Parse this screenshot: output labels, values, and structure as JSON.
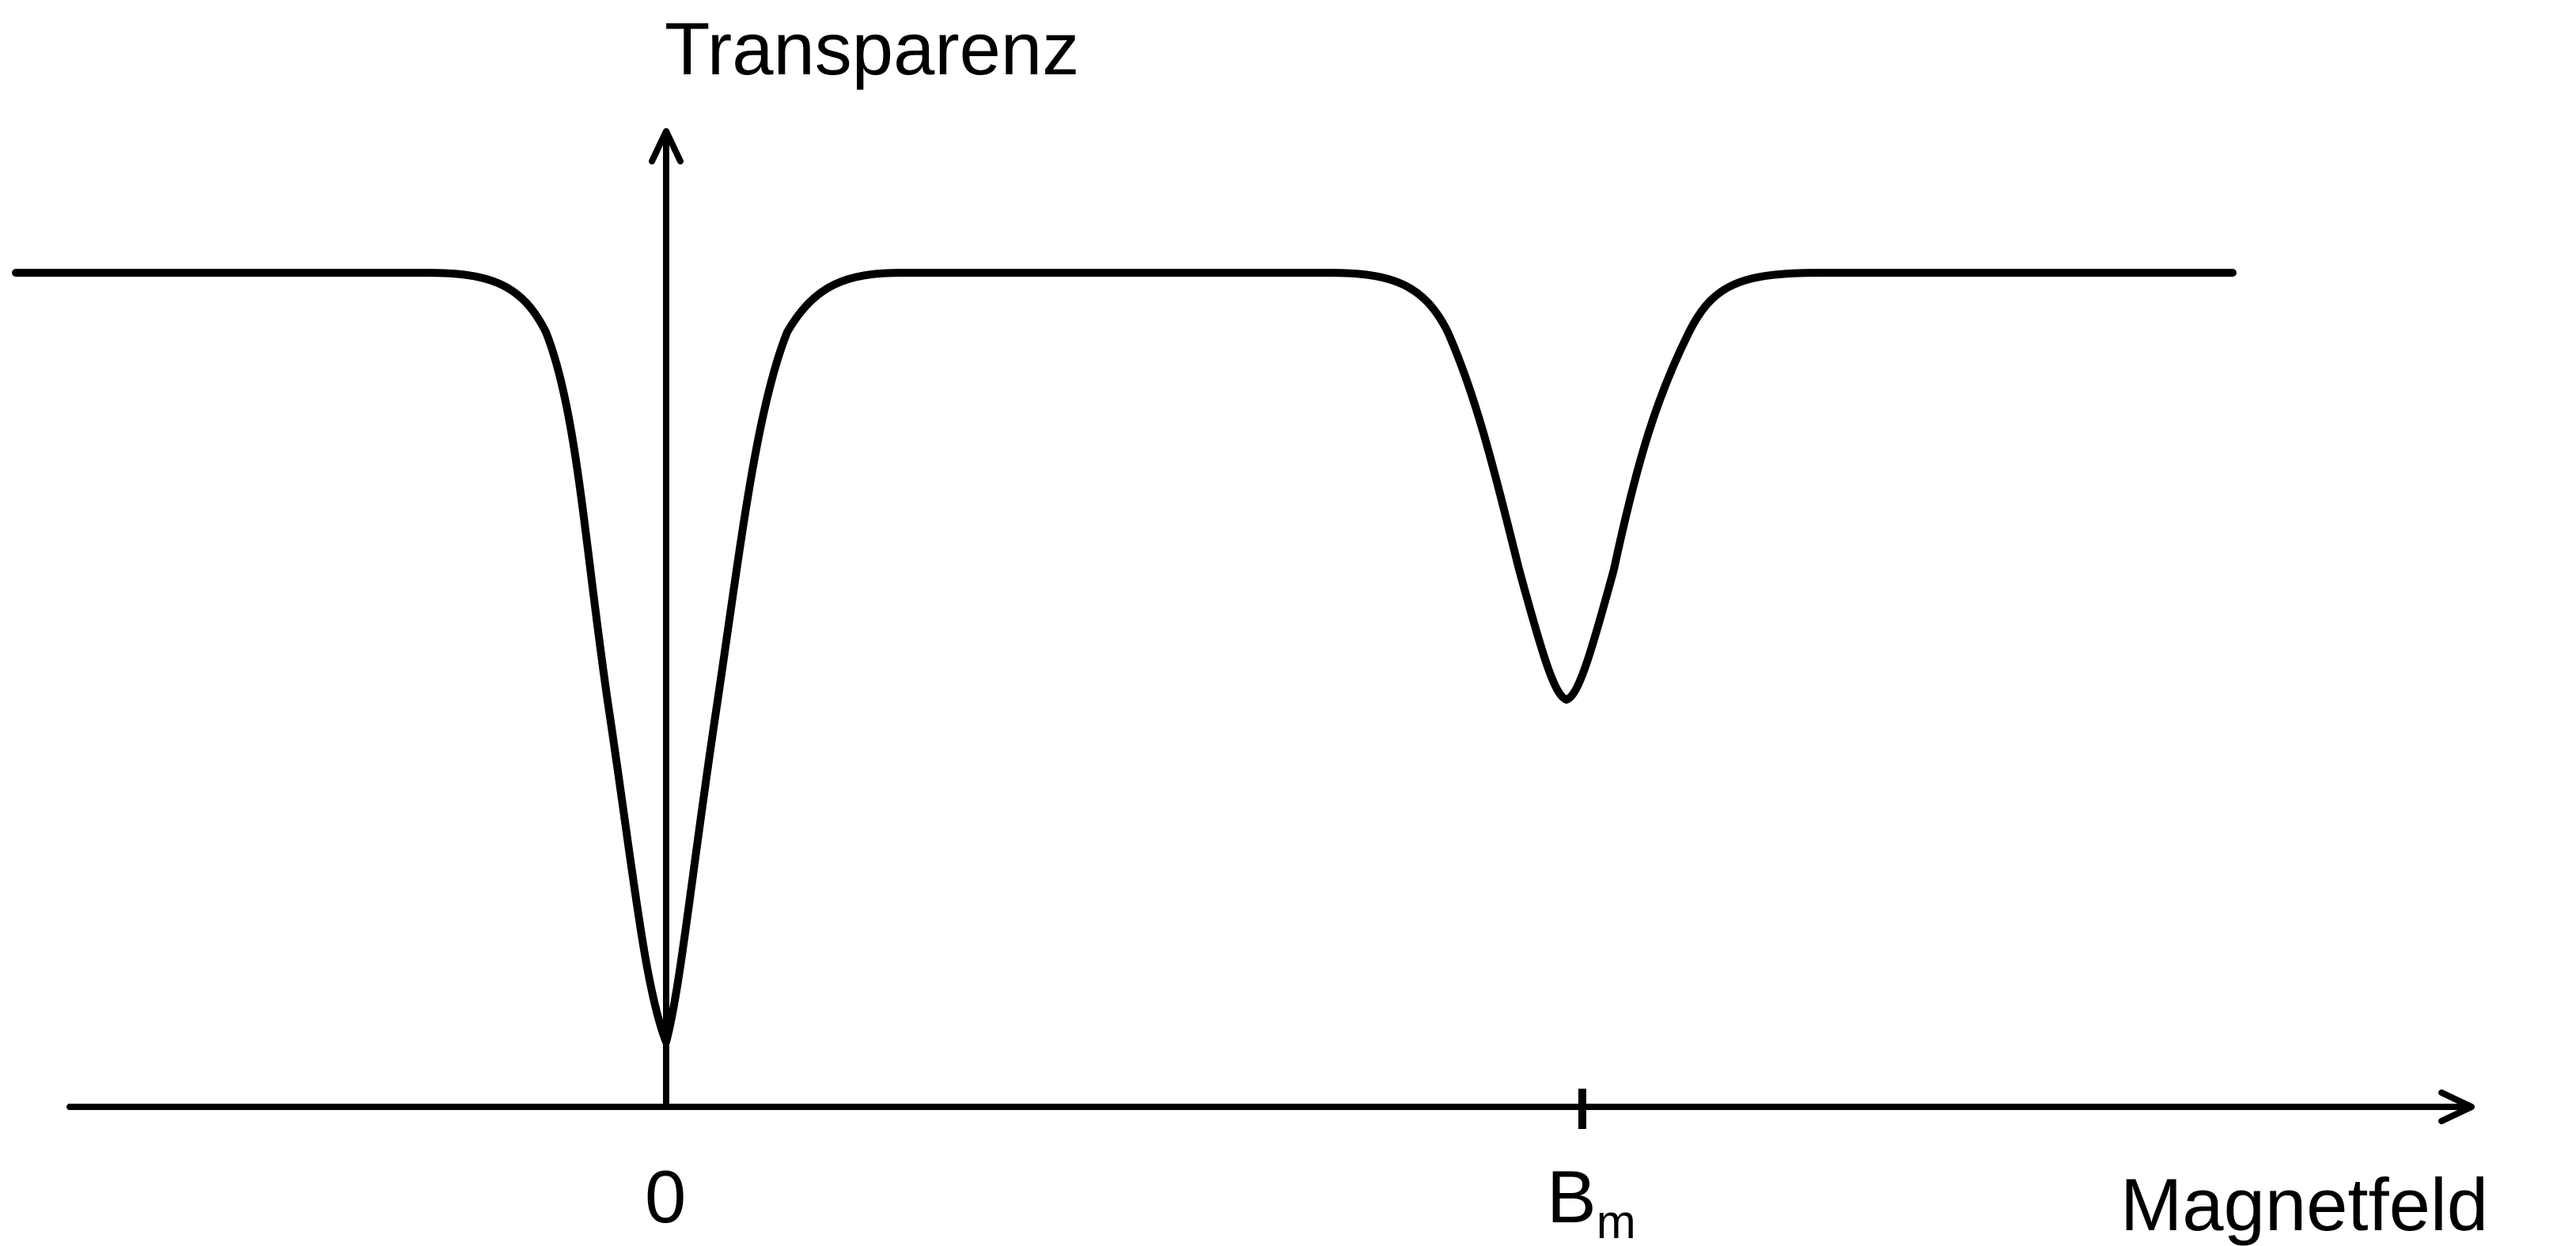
{
  "chart_data": {
    "type": "line",
    "ylabel": "Transparenz",
    "xlabel": "Magnetfeld",
    "tick_labels": {
      "origin": "0",
      "peak_main": "B",
      "peak_sub": "m"
    },
    "baseline_level": 1.0,
    "dips": [
      {
        "label": "0",
        "relative_position": 0.0,
        "relative_depth": 0.92,
        "width_factor": 1.0
      },
      {
        "label": "B_m",
        "relative_position": 1.0,
        "relative_depth": 0.5,
        "width_factor": 0.85
      }
    ],
    "grid": false,
    "legend": "none"
  },
  "colors": {
    "stroke": "#000000",
    "background": "#ffffff"
  }
}
